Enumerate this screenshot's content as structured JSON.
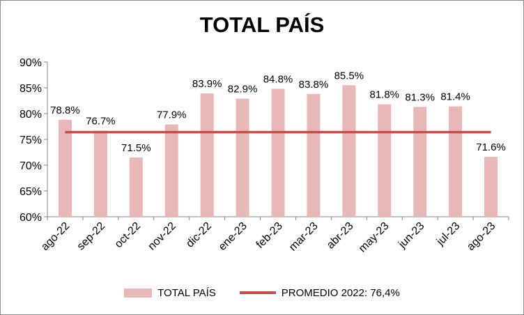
{
  "chart_data": {
    "type": "bar",
    "title": "TOTAL PAÍS",
    "categories": [
      "ago-22",
      "sep-22",
      "oct-22",
      "nov-22",
      "dic-22",
      "ene-23",
      "feb-23",
      "mar-23",
      "abr-23",
      "may-23",
      "jun-23",
      "jul-23",
      "ago-23"
    ],
    "series": [
      {
        "name": "TOTAL PAÍS",
        "type": "bar",
        "color": "#e6b8b7",
        "values": [
          78.8,
          76.7,
          71.5,
          77.9,
          83.9,
          82.9,
          84.8,
          83.8,
          85.5,
          81.8,
          81.3,
          81.4,
          71.6
        ],
        "labels": [
          "78.8%",
          "76.7%",
          "71.5%",
          "77.9%",
          "83.9%",
          "82.9%",
          "84.8%",
          "83.8%",
          "85.5%",
          "81.8%",
          "81.3%",
          "81.4%",
          "71.6%"
        ]
      },
      {
        "name": "PROMEDIO 2022: 76,4%",
        "type": "line",
        "color": "#c0504d",
        "value": 76.4
      }
    ],
    "ylim": [
      60,
      90
    ],
    "yticks": [
      60,
      65,
      70,
      75,
      80,
      85,
      90
    ],
    "ytick_labels": [
      "60%",
      "65%",
      "70%",
      "75%",
      "80%",
      "85%",
      "90%"
    ],
    "grid": false,
    "legend_position": "bottom"
  }
}
